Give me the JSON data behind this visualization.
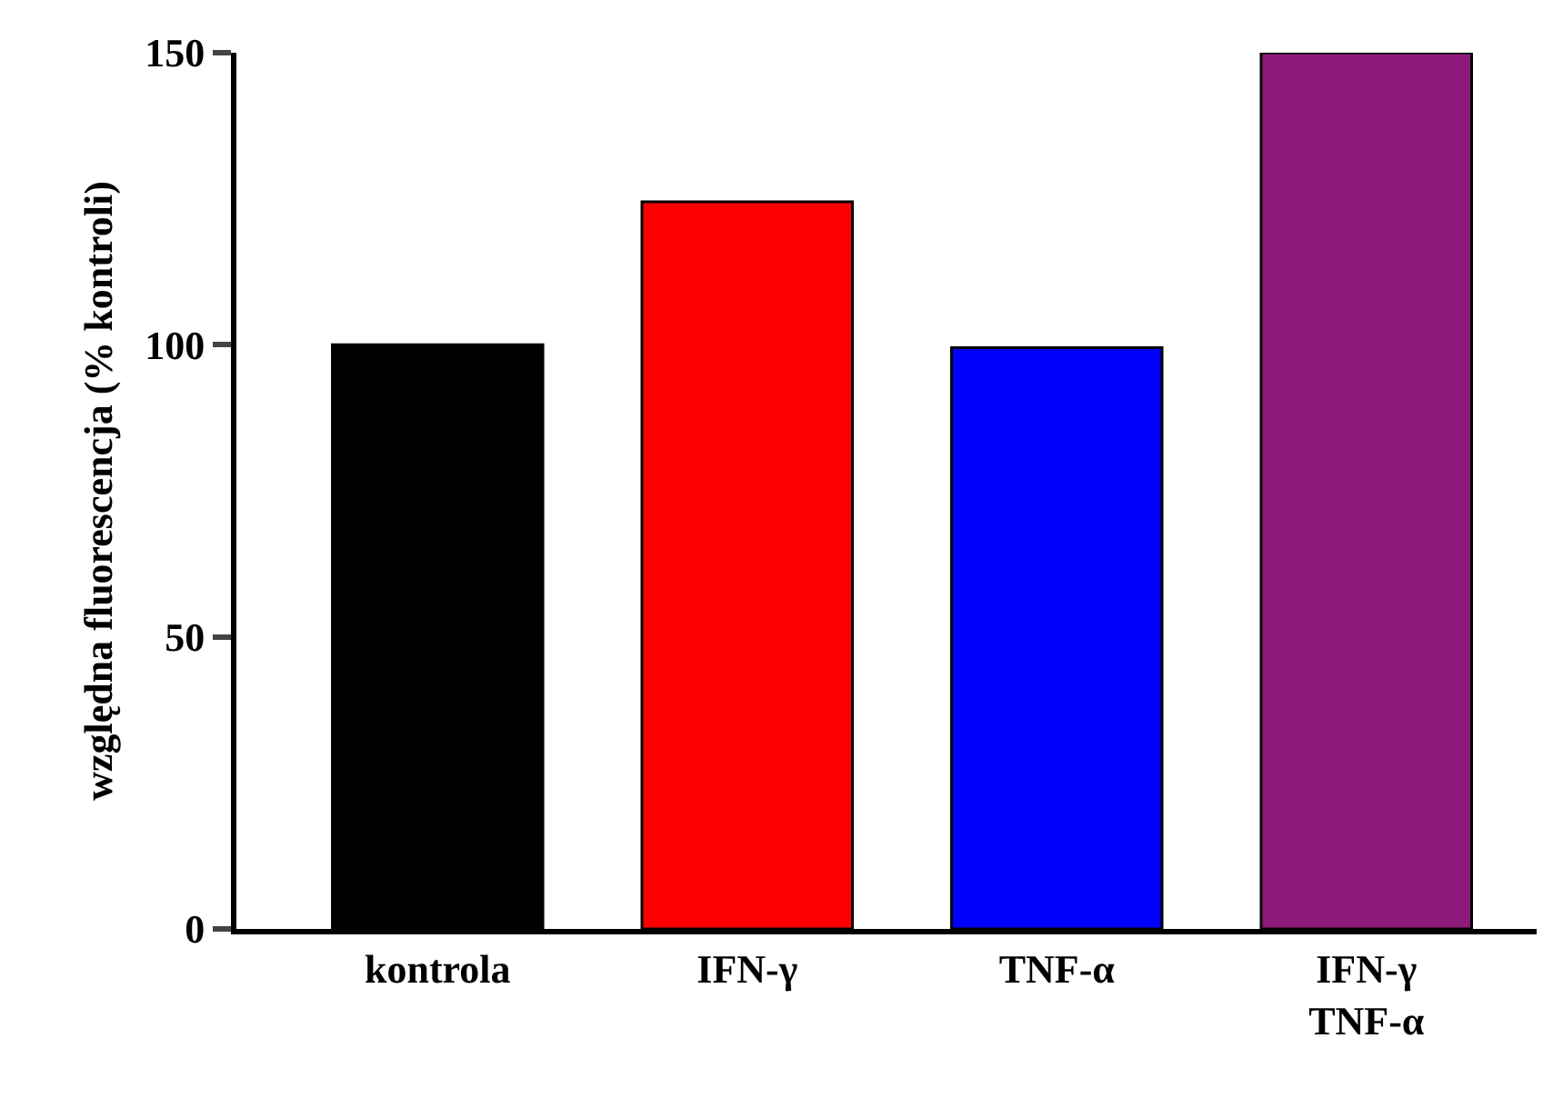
{
  "chart_data": {
    "type": "bar",
    "ylabel": "względna fluorescencja (% kontroli)",
    "categories": [
      "kontrola",
      "IFN-γ",
      "TNF-α",
      "IFN-γ\nTNF-α"
    ],
    "values": [
      100,
      124.5,
      99.5,
      150
    ],
    "colors": [
      "#000000",
      "#ff0000",
      "#0000ff",
      "#8b1a7a"
    ],
    "ylim": [
      0,
      150
    ],
    "yticks": [
      0,
      50,
      100,
      150
    ]
  }
}
